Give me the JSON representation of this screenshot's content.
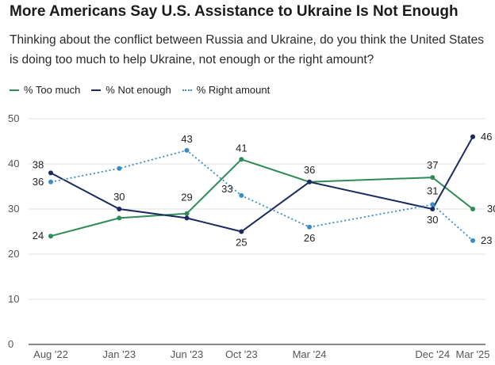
{
  "title": "More Americans Say U.S. Assistance to Ukraine Is Not Enough",
  "subtitle": "Thinking about the conflict between Russia and Ukraine, do you think the United States is doing too much to help Ukraine, not enough or the right amount?",
  "chart_data": {
    "type": "line",
    "x": [
      "Aug '22",
      "Jan '23",
      "Jun '23",
      "Oct '23",
      "Mar '24",
      "Dec '24",
      "Mar '25"
    ],
    "x_dates": [
      "2022-08",
      "2023-01",
      "2023-06",
      "2023-10",
      "2024-03",
      "2024-12",
      "2025-03"
    ],
    "ylim": [
      0,
      50
    ],
    "yticks": [
      0,
      10,
      20,
      30,
      40,
      50
    ],
    "grid": true,
    "legend_placement": "top-left",
    "series": [
      {
        "name": "% Too much",
        "color": "#2e8b57",
        "style": "solid",
        "points": [
          {
            "date": "2022-08",
            "value": 24,
            "label": "24"
          },
          {
            "date": "2023-01",
            "value": 28,
            "label": ""
          },
          {
            "date": "2023-06",
            "value": 29,
            "label": "29"
          },
          {
            "date": "2023-10",
            "value": 41,
            "label": "41"
          },
          {
            "date": "2024-03",
            "value": 36,
            "label": ""
          },
          {
            "date": "2024-12",
            "value": 37,
            "label": "37"
          },
          {
            "date": "2025-03",
            "value": 30,
            "label": "30"
          }
        ]
      },
      {
        "name": "% Not enough",
        "color": "#1b2a5e",
        "style": "solid",
        "points": [
          {
            "date": "2022-08",
            "value": 38,
            "label": "38"
          },
          {
            "date": "2023-01",
            "value": 30,
            "label": "30"
          },
          {
            "date": "2023-06",
            "value": 28,
            "label": ""
          },
          {
            "date": "2023-10",
            "value": 25,
            "label": "25"
          },
          {
            "date": "2024-03",
            "value": 36,
            "label": "36"
          },
          {
            "date": "2024-12",
            "value": 30,
            "label": "30"
          },
          {
            "date": "2025-03",
            "value": 46,
            "label": "46"
          }
        ]
      },
      {
        "name": "% Right amount",
        "color": "#3a8dc4",
        "style": "dotted",
        "points": [
          {
            "date": "2022-08",
            "value": 36,
            "label": "36"
          },
          {
            "date": "2023-01",
            "value": 39,
            "label": ""
          },
          {
            "date": "2023-06",
            "value": 43,
            "label": "43"
          },
          {
            "date": "2023-10",
            "value": 33,
            "label": "33"
          },
          {
            "date": "2024-03",
            "value": 26,
            "label": "26"
          },
          {
            "date": "2024-12",
            "value": 31,
            "label": "31"
          },
          {
            "date": "2025-03",
            "value": 23,
            "label": "23"
          }
        ]
      }
    ]
  }
}
